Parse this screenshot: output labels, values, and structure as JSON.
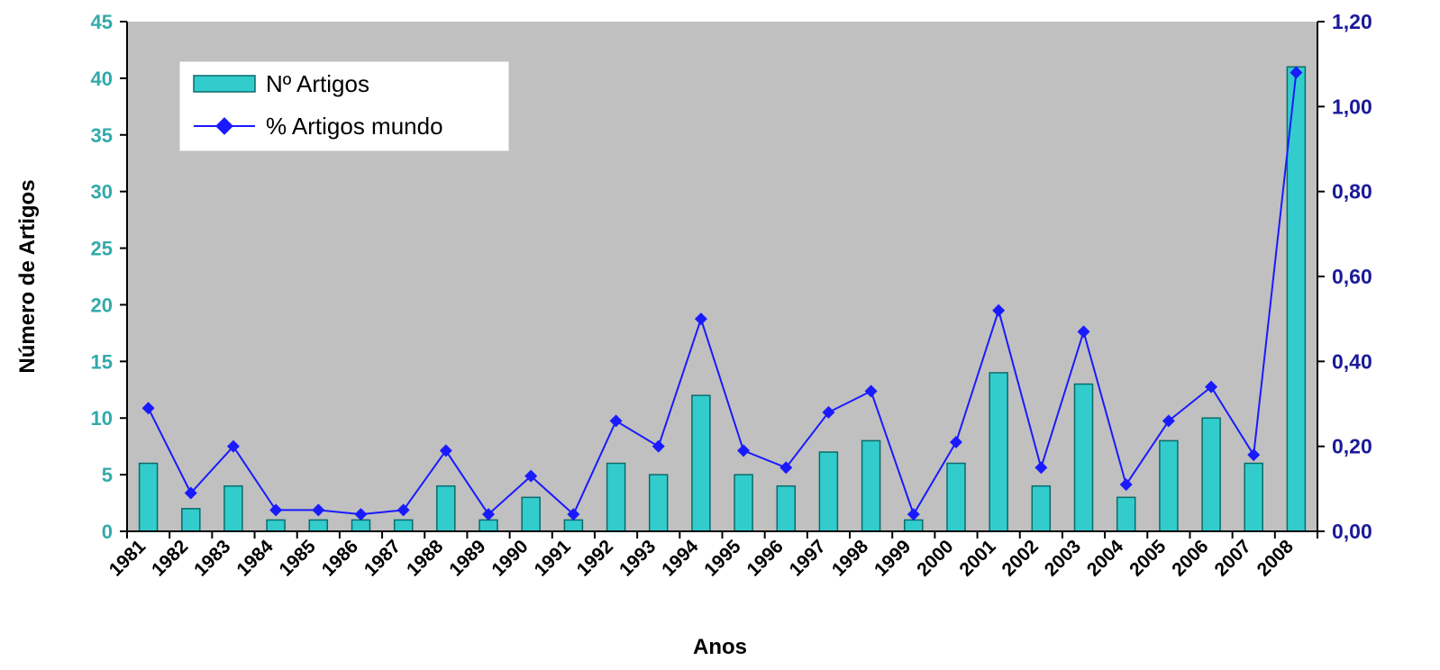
{
  "chart_data": {
    "type": "bar",
    "title": "",
    "xlabel": "Anos",
    "ylabel": "Número de Artigos",
    "categories": [
      "1981",
      "1982",
      "1983",
      "1984",
      "1985",
      "1986",
      "1987",
      "1988",
      "1989",
      "1990",
      "1991",
      "1992",
      "1993",
      "1994",
      "1995",
      "1996",
      "1997",
      "1998",
      "1999",
      "2000",
      "2001",
      "2002",
      "2003",
      "2004",
      "2005",
      "2006",
      "2007",
      "2008"
    ],
    "series": [
      {
        "name": "Nº Artigos",
        "type": "bar",
        "axis": "left",
        "values": [
          6,
          2,
          4,
          1,
          1,
          1,
          1,
          4,
          1,
          3,
          1,
          6,
          5,
          12,
          5,
          4,
          7,
          8,
          1,
          6,
          14,
          4,
          13,
          3,
          8,
          10,
          6,
          41
        ]
      },
      {
        "name": "% Artigos mundo",
        "type": "line",
        "axis": "right",
        "values": [
          0.29,
          0.09,
          0.2,
          0.05,
          0.05,
          0.04,
          0.05,
          0.19,
          0.04,
          0.13,
          0.04,
          0.26,
          0.2,
          0.5,
          0.19,
          0.15,
          0.28,
          0.33,
          0.04,
          0.21,
          0.52,
          0.15,
          0.47,
          0.11,
          0.26,
          0.34,
          0.18,
          1.08
        ]
      }
    ],
    "ylim_left": [
      0,
      45
    ],
    "ylim_right": [
      0,
      1.2
    ],
    "yticks_left": [
      "0",
      "5",
      "10",
      "15",
      "20",
      "25",
      "30",
      "35",
      "40",
      "45"
    ],
    "yticks_right": [
      "0,00",
      "0,20",
      "0,40",
      "0,60",
      "0,80",
      "1,00",
      "1,20"
    ],
    "grid": false,
    "legend_position": "top-left",
    "colors": {
      "plot_background": "#c0c0c0",
      "bar_fill": "#33cccc",
      "bar_stroke": "#0b6b6b",
      "line": "#1a1aff",
      "left_axis_text": "#33aaaa",
      "right_axis_text": "#1a1a99"
    }
  }
}
